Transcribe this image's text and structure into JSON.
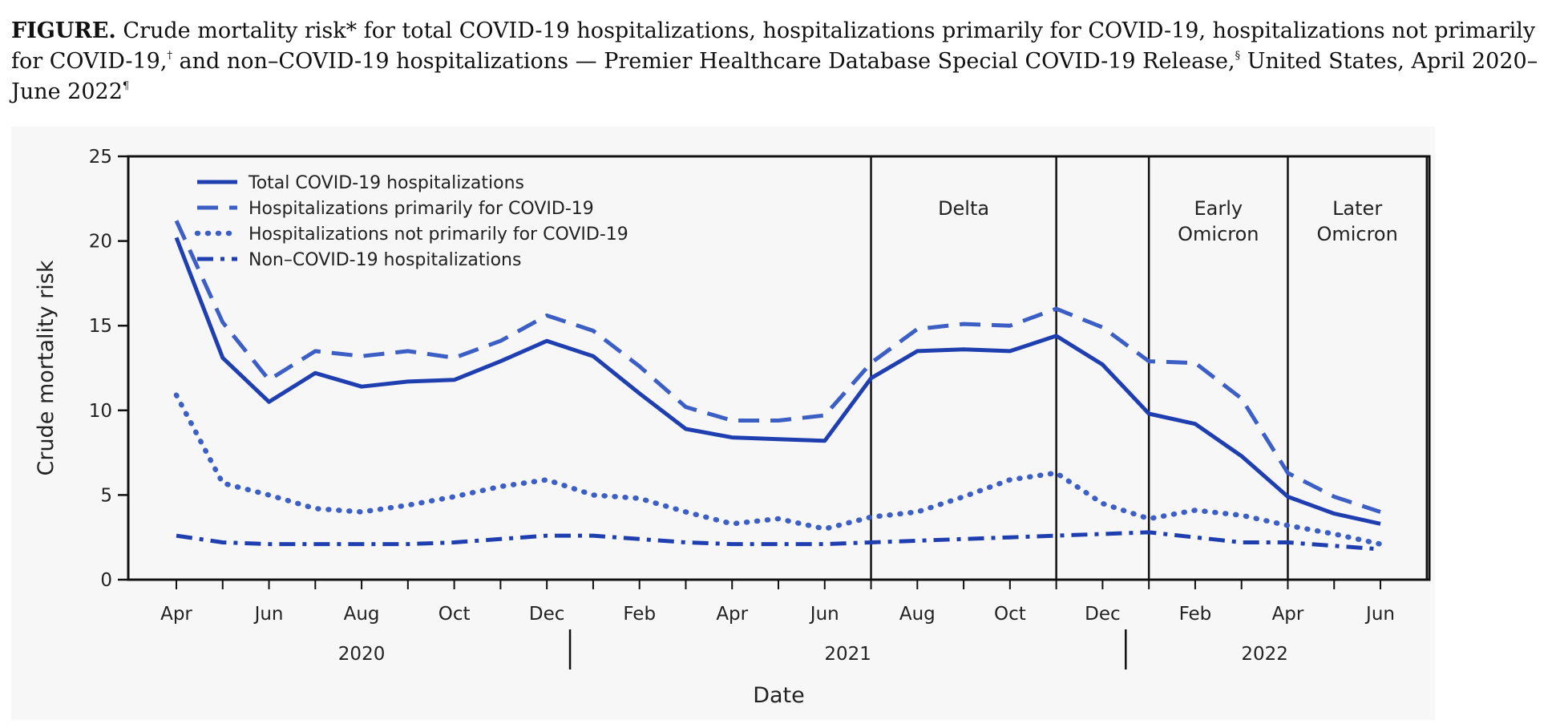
{
  "caption": {
    "label": "FIGURE.",
    "text_1": " Crude mortality risk* for total COVID-19 hospitalizations, hospitalizations primarily for COVID-19, hospitalizations not primarily for COVID-19,",
    "sup_1": "†",
    "text_2": " and non–COVID-19 hospitalizations — Premier Healthcare Database Special COVID-19 Release,",
    "sup_2": "§",
    "text_3": " United States, April 2020–June 2022",
    "sup_3": "¶"
  },
  "colors": {
    "series": "#1f3fb0",
    "series_light": "#3b5fc4",
    "axis": "#111111"
  },
  "chart_data": {
    "type": "line",
    "xlabel": "Date",
    "ylabel": "Crude mortality risk",
    "ylim": [
      0,
      25
    ],
    "yticks": [
      0,
      5,
      10,
      15,
      20,
      25
    ],
    "x": [
      "2020-04",
      "2020-05",
      "2020-06",
      "2020-07",
      "2020-08",
      "2020-09",
      "2020-10",
      "2020-11",
      "2020-12",
      "2021-01",
      "2021-02",
      "2021-03",
      "2021-04",
      "2021-05",
      "2021-06",
      "2021-07",
      "2021-08",
      "2021-09",
      "2021-10",
      "2021-11",
      "2021-12",
      "2022-01",
      "2022-02",
      "2022-03",
      "2022-04",
      "2022-05",
      "2022-06"
    ],
    "x_tick_labels": [
      {
        "x": "2020-04",
        "label": "Apr"
      },
      {
        "x": "2020-06",
        "label": "Jun"
      },
      {
        "x": "2020-08",
        "label": "Aug"
      },
      {
        "x": "2020-10",
        "label": "Oct"
      },
      {
        "x": "2020-12",
        "label": "Dec"
      },
      {
        "x": "2021-02",
        "label": "Feb"
      },
      {
        "x": "2021-04",
        "label": "Apr"
      },
      {
        "x": "2021-06",
        "label": "Jun"
      },
      {
        "x": "2021-08",
        "label": "Aug"
      },
      {
        "x": "2021-10",
        "label": "Oct"
      },
      {
        "x": "2021-12",
        "label": "Dec"
      },
      {
        "x": "2022-02",
        "label": "Feb"
      },
      {
        "x": "2022-04",
        "label": "Apr"
      },
      {
        "x": "2022-06",
        "label": "Jun"
      }
    ],
    "year_labels": [
      {
        "label": "2020",
        "from": "2020-04",
        "to": "2020-12"
      },
      {
        "label": "2021",
        "from": "2021-01",
        "to": "2021-12"
      },
      {
        "label": "2022",
        "from": "2022-01",
        "to": "2022-06"
      }
    ],
    "year_dividers": [
      "2021-01",
      "2022-01"
    ],
    "period_boundaries": [
      "2021-07",
      "2021-11",
      "2022-01",
      "2022-04",
      "2022-07"
    ],
    "periods": [
      {
        "label_lines": [
          "Delta"
        ],
        "from": "2021-07",
        "to": "2021-11"
      },
      {
        "label_lines": [
          "Early",
          "Omicron"
        ],
        "from": "2022-01",
        "to": "2022-04"
      },
      {
        "label_lines": [
          "Later",
          "Omicron"
        ],
        "from": "2022-04",
        "to": "2022-07"
      }
    ],
    "grid": false,
    "legend_position": "top-left",
    "series": [
      {
        "name": "Total COVID-19 hospitalizations",
        "style": "solid",
        "values": [
          20.2,
          13.1,
          10.5,
          12.2,
          11.4,
          11.7,
          11.8,
          12.9,
          14.1,
          13.2,
          11.0,
          8.9,
          8.4,
          8.3,
          8.2,
          11.9,
          13.5,
          13.6,
          13.5,
          14.4,
          12.7,
          9.8,
          9.2,
          7.3,
          4.9,
          3.9,
          3.3
        ]
      },
      {
        "name": "Hospitalizations primarily for COVID-19",
        "style": "dashed",
        "values": [
          21.2,
          15.2,
          11.8,
          13.5,
          13.2,
          13.5,
          13.1,
          14.1,
          15.6,
          14.7,
          12.6,
          10.2,
          9.4,
          9.4,
          9.7,
          12.8,
          14.8,
          15.1,
          15.0,
          16.0,
          14.9,
          12.9,
          12.8,
          10.7,
          6.3,
          4.9,
          4.0
        ]
      },
      {
        "name": "Hospitalizations not primarily for COVID-19",
        "style": "dotted",
        "values": [
          10.9,
          5.7,
          5.0,
          4.2,
          4.0,
          4.4,
          4.9,
          5.5,
          5.9,
          5.0,
          4.8,
          4.0,
          3.3,
          3.6,
          3.0,
          3.7,
          4.0,
          4.9,
          5.9,
          6.3,
          4.5,
          3.6,
          4.1,
          3.8,
          3.2,
          2.7,
          2.1
        ]
      },
      {
        "name": "Non–COVID-19 hospitalizations",
        "style": "dashdot",
        "values": [
          2.6,
          2.2,
          2.1,
          2.1,
          2.1,
          2.1,
          2.2,
          2.4,
          2.6,
          2.6,
          2.4,
          2.2,
          2.1,
          2.1,
          2.1,
          2.2,
          2.3,
          2.4,
          2.5,
          2.6,
          2.7,
          2.8,
          2.5,
          2.2,
          2.2,
          2.0,
          1.8
        ]
      }
    ]
  }
}
